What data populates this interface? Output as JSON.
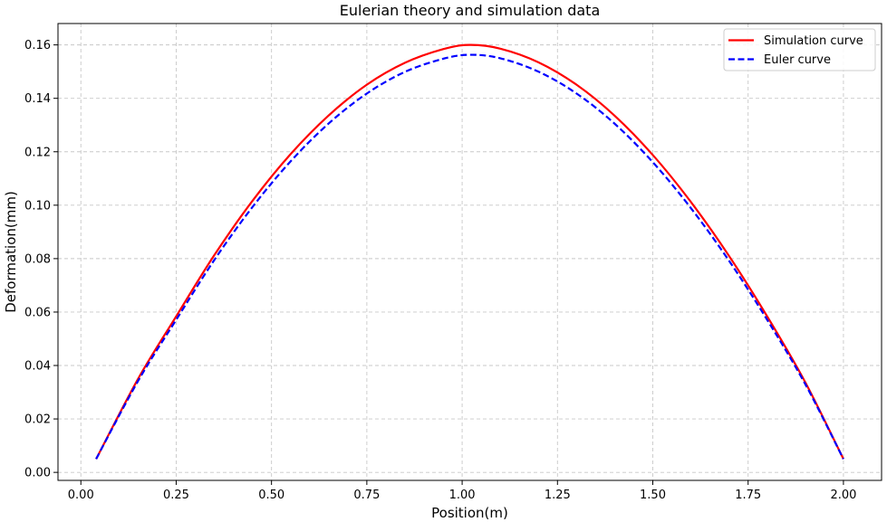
{
  "chart_data": {
    "type": "line",
    "title": "Eulerian theory and simulation data",
    "xlabel": "Position(m)",
    "ylabel": "Deformation(mm)",
    "xlim": [
      -0.06,
      2.1
    ],
    "ylim": [
      -0.003,
      0.168
    ],
    "xticks": [
      0.0,
      0.25,
      0.5,
      0.75,
      1.0,
      1.25,
      1.5,
      1.75,
      2.0
    ],
    "xtick_labels": [
      "0.00",
      "0.25",
      "0.50",
      "0.75",
      "1.00",
      "1.25",
      "1.50",
      "1.75",
      "2.00"
    ],
    "yticks": [
      0.0,
      0.02,
      0.04,
      0.06,
      0.08,
      0.1,
      0.12,
      0.14,
      0.16
    ],
    "ytick_labels": [
      "0.00",
      "0.02",
      "0.04",
      "0.06",
      "0.08",
      "0.10",
      "0.12",
      "0.14",
      "0.16"
    ],
    "grid": true,
    "legend_position": "top-right",
    "x": [
      0.04,
      0.15,
      0.25,
      0.35,
      0.45,
      0.55,
      0.65,
      0.75,
      0.85,
      0.95,
      1.02,
      1.1,
      1.2,
      1.3,
      1.4,
      1.5,
      1.6,
      1.7,
      1.8,
      1.9,
      2.0
    ],
    "series": [
      {
        "name": "Simulation curve",
        "color": "#ff0000",
        "style": "solid",
        "values": [
          0.005,
          0.035,
          0.0584,
          0.0813,
          0.1016,
          0.1191,
          0.1336,
          0.1451,
          0.1533,
          0.1584,
          0.16,
          0.1586,
          0.1535,
          0.1451,
          0.1335,
          0.1188,
          0.1012,
          0.081,
          0.0584,
          0.0337,
          0.005
        ]
      },
      {
        "name": "Euler curve",
        "color": "#0000ff",
        "style": "dashed",
        "values": [
          0.005,
          0.0342,
          0.0571,
          0.0795,
          0.0993,
          0.1164,
          0.1306,
          0.1418,
          0.1499,
          0.1548,
          0.1563,
          0.155,
          0.15,
          0.1418,
          0.1305,
          0.1161,
          0.0989,
          0.0792,
          0.0571,
          0.033,
          0.005
        ]
      }
    ]
  }
}
